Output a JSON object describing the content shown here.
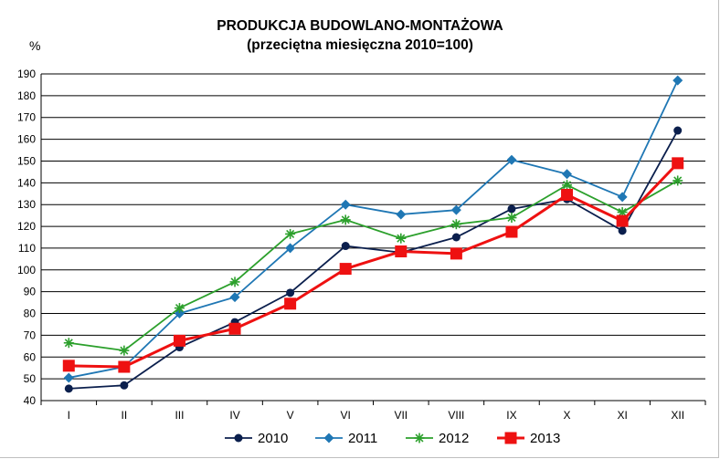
{
  "chart_data": {
    "type": "line",
    "title": "PRODUKCJA BUDOWLANO-MONTAŻOWA",
    "subtitle": "(przeciętna miesięczna 2010=100)",
    "ylabel": "%",
    "xlabel": "",
    "ylim": [
      40,
      190
    ],
    "ytick_step": 10,
    "grid": true,
    "legend_position": "bottom",
    "categories": [
      "I",
      "II",
      "III",
      "IV",
      "V",
      "VI",
      "VII",
      "VIII",
      "IX",
      "X",
      "XI",
      "XII"
    ],
    "series": [
      {
        "name": "2010",
        "color": "#0b1f4d",
        "marker": "circle",
        "values": [
          45.5,
          47,
          64.5,
          76,
          89.5,
          111,
          108,
          115,
          128,
          132.5,
          118,
          164
        ]
      },
      {
        "name": "2011",
        "color": "#1f77b4",
        "marker": "diamond",
        "values": [
          50.5,
          55.5,
          80,
          87.5,
          110,
          130,
          125.5,
          127.5,
          150.5,
          144,
          133.5,
          187
        ]
      },
      {
        "name": "2012",
        "color": "#2ca02c",
        "marker": "asterisk",
        "values": [
          66.5,
          63,
          82.5,
          94.5,
          116.5,
          123,
          114.5,
          121,
          124,
          139,
          126.5,
          141
        ]
      },
      {
        "name": "2013",
        "color": "#ee1111",
        "marker": "square",
        "values": [
          56,
          55.5,
          67.5,
          73,
          84.5,
          100.5,
          108.5,
          107.5,
          117.5,
          134.5,
          122.5,
          149
        ]
      }
    ]
  }
}
